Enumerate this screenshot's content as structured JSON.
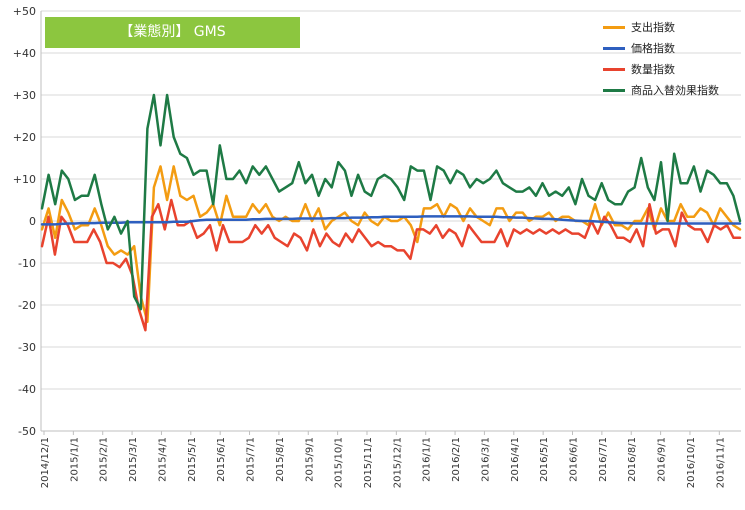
{
  "chart_data": {
    "type": "line",
    "title": "【業態別】 GMS",
    "yticks": [
      "+50",
      "+40",
      "+30",
      "+20",
      "+10",
      "0",
      "-10",
      "-20",
      "-30",
      "-40",
      "-50"
    ],
    "ylim": [
      -50,
      50
    ],
    "grid": true,
    "legend_position": "top-right",
    "xticks": [
      "2014/12/1",
      "2015/1/1",
      "2015/2/1",
      "2015/3/1",
      "2015/4/1",
      "2015/5/1",
      "2015/6/1",
      "2015/7/1",
      "2015/8/1",
      "2015/9/1",
      "2015/10/1",
      "2015/11/1",
      "2015/12/1",
      "2016/1/1",
      "2016/2/1",
      "2016/3/1",
      "2016/4/1",
      "2016/5/1",
      "2016/6/1",
      "2016/7/1",
      "2016/8/1",
      "2016/9/1",
      "2016/10/1",
      "2016/11/1"
    ],
    "series": [
      {
        "name": "支出指数",
        "color": "#f39c12",
        "values": [
          -2,
          3,
          -4,
          5,
          2,
          -2,
          -1,
          -1,
          3,
          -1,
          -6,
          -8,
          -7,
          -8,
          -6,
          -18,
          -24,
          8,
          13,
          5,
          13,
          6,
          5,
          6,
          1,
          2,
          4,
          -1,
          6,
          1,
          1,
          1,
          4,
          2,
          4,
          1,
          0,
          1,
          0,
          0,
          4,
          0,
          3,
          -2,
          0,
          1,
          2,
          0,
          -1,
          2,
          0,
          -1,
          1,
          0,
          0,
          1,
          -1,
          -5,
          3,
          3,
          4,
          1,
          4,
          3,
          0,
          3,
          1,
          0,
          -1,
          3,
          3,
          0,
          2,
          2,
          0,
          1,
          1,
          2,
          0,
          1,
          1,
          0,
          0,
          -1,
          4,
          -1,
          2,
          -1,
          -1,
          -2,
          0,
          0,
          3,
          -2,
          3,
          0,
          0,
          4,
          1,
          1,
          3,
          2,
          -1,
          3,
          1,
          -1,
          -2
        ]
      },
      {
        "name": "価格指数",
        "color": "#2e5fbf",
        "values": [
          -0.8,
          -0.8,
          -0.8,
          -0.7,
          -0.6,
          -0.6,
          -0.5,
          -0.5,
          -0.5,
          -0.4,
          -0.4,
          -0.4,
          -0.4,
          -0.3,
          -0.3,
          -0.3,
          -0.3,
          -0.3,
          -0.3,
          -0.3,
          -0.2,
          -0.2,
          -0.2,
          0,
          0.2,
          0.3,
          0.3,
          0.3,
          0.3,
          0.3,
          0.3,
          0.3,
          0.4,
          0.4,
          0.5,
          0.5,
          0.5,
          0.5,
          0.5,
          0.6,
          0.6,
          0.6,
          0.6,
          0.6,
          0.7,
          0.7,
          0.7,
          0.8,
          0.8,
          0.8,
          0.9,
          0.9,
          1,
          1,
          1,
          1,
          1,
          1,
          1.1,
          1.1,
          1.1,
          1.1,
          1.1,
          1.1,
          1.1,
          1.1,
          1,
          1,
          1,
          1,
          0.9,
          0.9,
          0.8,
          0.8,
          0.7,
          0.6,
          0.5,
          0.5,
          0.4,
          0.3,
          0.2,
          0.1,
          0,
          0,
          -0.1,
          -0.2,
          -0.3,
          -0.4,
          -0.5,
          -0.5,
          -0.6,
          -0.6,
          -0.6,
          -0.6,
          -0.6,
          -0.6,
          -0.6,
          -0.6,
          -0.6,
          -0.6,
          -0.6,
          -0.6,
          -0.6,
          -0.6,
          -0.6,
          -0.6,
          -0.6
        ]
      },
      {
        "name": "数量指数",
        "color": "#e8432e",
        "values": [
          -6,
          1,
          -8,
          1,
          -1,
          -5,
          -5,
          -5,
          -2,
          -5,
          -10,
          -10,
          -11,
          -9,
          -13,
          -21,
          -26,
          1,
          4,
          -2,
          5,
          -1,
          -1,
          0,
          -4,
          -3,
          -1,
          -7,
          -1,
          -5,
          -5,
          -5,
          -4,
          -1,
          -3,
          -1,
          -4,
          -5,
          -6,
          -3,
          -4,
          -7,
          -2,
          -6,
          -3,
          -5,
          -6,
          -3,
          -5,
          -2,
          -4,
          -6,
          -5,
          -6,
          -6,
          -7,
          -7,
          -9,
          -2,
          -2,
          -3,
          -1,
          -4,
          -2,
          -3,
          -6,
          -1,
          -3,
          -5,
          -5,
          -5,
          -2,
          -6,
          -2,
          -3,
          -2,
          -3,
          -2,
          -3,
          -2,
          -3,
          -2,
          -3,
          -3,
          -4,
          0,
          -3,
          1,
          -1,
          -4,
          -4,
          -5,
          -2,
          -6,
          4,
          -3,
          -2,
          -2,
          -6,
          2,
          -1,
          -2,
          -2,
          -5,
          -1,
          -2,
          -1,
          -4,
          -4
        ]
      },
      {
        "name": "商品入替効果指数",
        "color": "#1e7a45",
        "values": [
          3,
          11,
          4,
          12,
          10,
          5,
          6,
          6,
          11,
          4,
          -2,
          1,
          -3,
          0,
          -18,
          -21,
          22,
          30,
          18,
          30,
          20,
          16,
          15,
          11,
          12,
          12,
          4,
          18,
          10,
          10,
          12,
          9,
          13,
          11,
          13,
          10,
          7,
          8,
          9,
          14,
          9,
          11,
          6,
          10,
          8,
          14,
          12,
          6,
          11,
          7,
          6,
          10,
          11,
          10,
          8,
          5,
          13,
          12,
          12,
          5,
          13,
          12,
          9,
          12,
          11,
          8,
          10,
          9,
          10,
          12,
          9,
          8,
          7,
          7,
          8,
          6,
          9,
          6,
          7,
          6,
          8,
          4,
          10,
          6,
          5,
          9,
          5,
          4,
          4,
          7,
          8,
          15,
          8,
          5,
          14,
          0,
          16,
          9,
          9,
          13,
          7,
          12,
          11,
          9,
          9,
          6,
          0
        ]
      }
    ]
  }
}
